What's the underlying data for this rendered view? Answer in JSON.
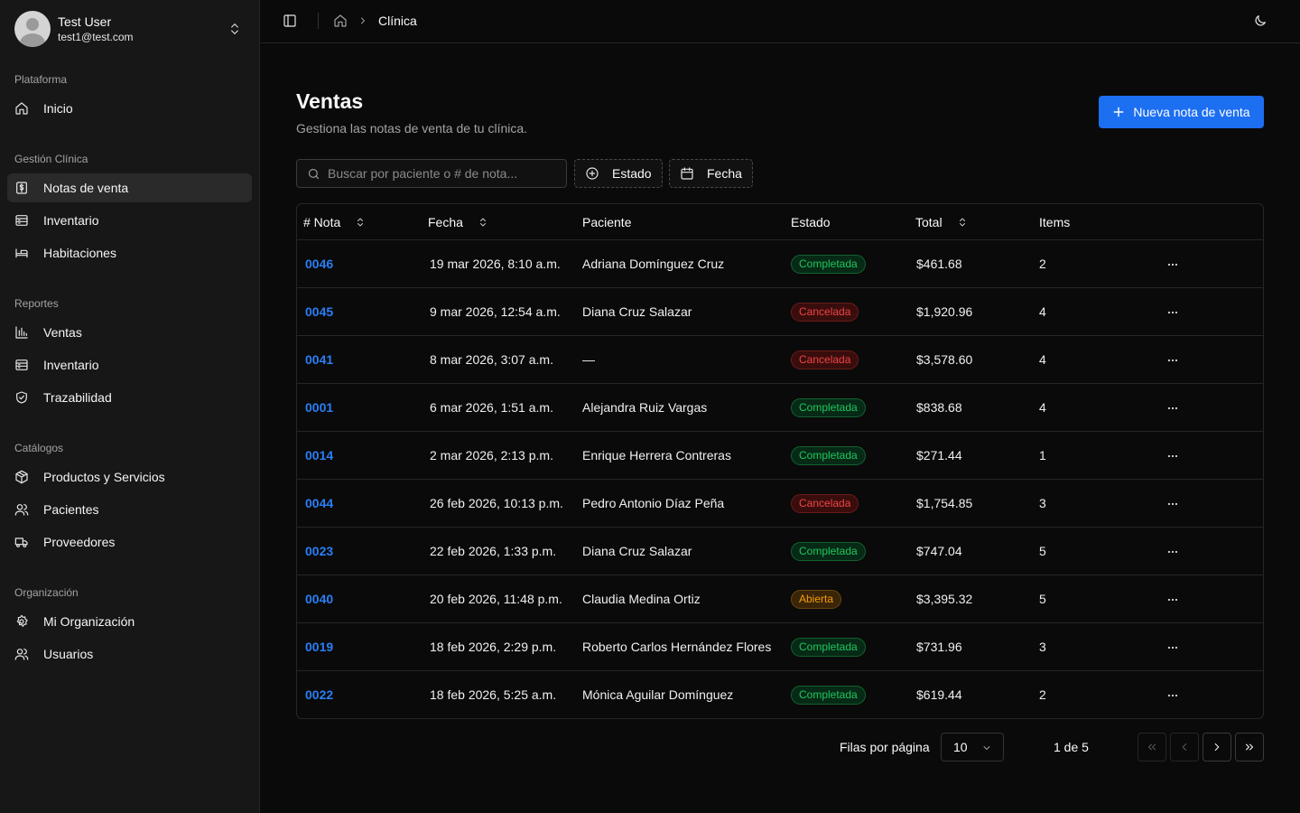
{
  "user": {
    "name": "Test User",
    "email": "test1@test.com"
  },
  "sidebar": {
    "groups": [
      {
        "label": "Plataforma",
        "items": [
          {
            "label": "Inicio",
            "icon": "home-icon"
          }
        ]
      },
      {
        "label": "Gestión Clínica",
        "items": [
          {
            "label": "Notas de venta",
            "icon": "receipt-icon",
            "active": true
          },
          {
            "label": "Inventario",
            "icon": "archive-icon"
          },
          {
            "label": "Habitaciones",
            "icon": "bed-icon"
          }
        ]
      },
      {
        "label": "Reportes",
        "items": [
          {
            "label": "Ventas",
            "icon": "bar-chart-icon"
          },
          {
            "label": "Inventario",
            "icon": "archive-icon"
          },
          {
            "label": "Trazabilidad",
            "icon": "shield-check-icon"
          }
        ]
      },
      {
        "label": "Catálogos",
        "items": [
          {
            "label": "Productos y Servicios",
            "icon": "package-icon"
          },
          {
            "label": "Pacientes",
            "icon": "users-icon"
          },
          {
            "label": "Proveedores",
            "icon": "truck-icon"
          }
        ]
      },
      {
        "label": "Organización",
        "items": [
          {
            "label": "Mi Organización",
            "icon": "gear-icon"
          },
          {
            "label": "Usuarios",
            "icon": "users-icon"
          }
        ]
      }
    ]
  },
  "topbar": {
    "breadcrumb": "Clínica"
  },
  "header": {
    "title": "Ventas",
    "subtitle": "Gestiona las notas de venta de tu clínica.",
    "new_button": "Nueva nota de venta"
  },
  "filters": {
    "search_placeholder": "Buscar por paciente o # de nota...",
    "estado": "Estado",
    "fecha": "Fecha"
  },
  "table": {
    "columns": [
      "# Nota",
      "Fecha",
      "Paciente",
      "Estado",
      "Total",
      "Items"
    ],
    "rows": [
      {
        "nota": "0046",
        "fecha": "19 mar 2026, 8:10 a.m.",
        "paciente": "Adriana Domínguez Cruz",
        "estado": "Completada",
        "total": "$461.68",
        "items": "2"
      },
      {
        "nota": "0045",
        "fecha": "9 mar 2026, 12:54 a.m.",
        "paciente": "Diana Cruz Salazar",
        "estado": "Cancelada",
        "total": "$1,920.96",
        "items": "4"
      },
      {
        "nota": "0041",
        "fecha": "8 mar 2026, 3:07 a.m.",
        "paciente": "—",
        "estado": "Cancelada",
        "total": "$3,578.60",
        "items": "4"
      },
      {
        "nota": "0001",
        "fecha": "6 mar 2026, 1:51 a.m.",
        "paciente": "Alejandra Ruiz Vargas",
        "estado": "Completada",
        "total": "$838.68",
        "items": "4"
      },
      {
        "nota": "0014",
        "fecha": "2 mar 2026, 2:13 p.m.",
        "paciente": "Enrique Herrera Contreras",
        "estado": "Completada",
        "total": "$271.44",
        "items": "1"
      },
      {
        "nota": "0044",
        "fecha": "26 feb 2026, 10:13 p.m.",
        "paciente": "Pedro Antonio Díaz Peña",
        "estado": "Cancelada",
        "total": "$1,754.85",
        "items": "3"
      },
      {
        "nota": "0023",
        "fecha": "22 feb 2026, 1:33 p.m.",
        "paciente": "Diana Cruz Salazar",
        "estado": "Completada",
        "total": "$747.04",
        "items": "5"
      },
      {
        "nota": "0040",
        "fecha": "20 feb 2026, 11:48 p.m.",
        "paciente": "Claudia Medina Ortiz",
        "estado": "Abierta",
        "total": "$3,395.32",
        "items": "5"
      },
      {
        "nota": "0019",
        "fecha": "18 feb 2026, 2:29 p.m.",
        "paciente": "Roberto Carlos Hernández Flores",
        "estado": "Completada",
        "total": "$731.96",
        "items": "3"
      },
      {
        "nota": "0022",
        "fecha": "18 feb 2026, 5:25 a.m.",
        "paciente": "Mónica Aguilar Domínguez",
        "estado": "Completada",
        "total": "$619.44",
        "items": "2"
      }
    ]
  },
  "pagination": {
    "rows_label": "Filas por página",
    "rows_value": "10",
    "page_info": "1 de 5"
  },
  "colors": {
    "accent": "#1d6ff2",
    "link": "#2b7ef5",
    "success": "#22c55e",
    "danger": "#ef4444",
    "warning": "#f59e0b"
  }
}
